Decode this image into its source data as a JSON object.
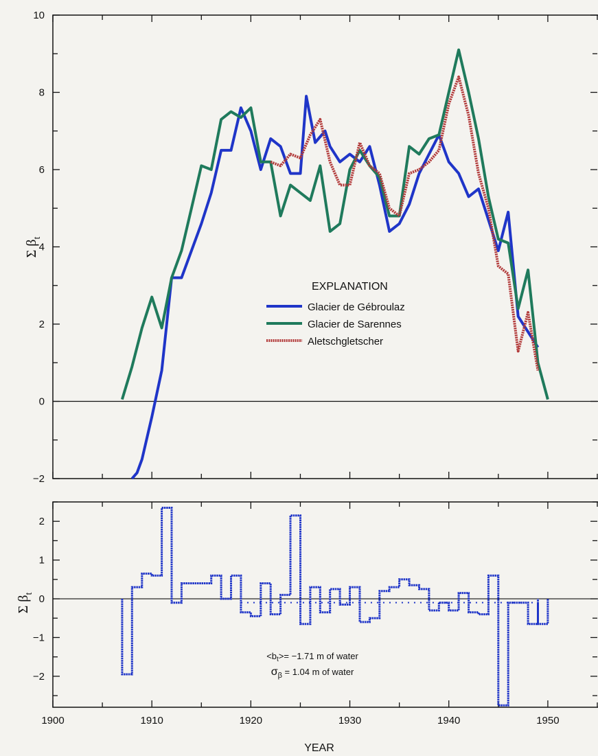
{
  "chart_data": [
    {
      "type": "line",
      "title": "",
      "xlabel": "",
      "ylabel_main": "Σ β",
      "ylabel_sub": "t",
      "xlim": [
        1900,
        1955
      ],
      "ylim": [
        -2,
        10
      ],
      "yticks": [
        "−2",
        "0",
        "2",
        "4",
        "6",
        "8",
        "10"
      ],
      "grid": false,
      "legend_title": "EXPLANATION",
      "legend_position": "center",
      "series": [
        {
          "name": "Glacier de Gébroulaz",
          "color": "#1f35c8",
          "points": [
            [
              1908.0,
              -2.0
            ],
            [
              1908.5,
              -1.85
            ],
            [
              1909,
              -1.5
            ],
            [
              1910,
              -0.4
            ],
            [
              1911,
              0.8
            ],
            [
              1912,
              3.2
            ],
            [
              1913,
              3.2
            ],
            [
              1914,
              3.9
            ],
            [
              1915,
              4.6
            ],
            [
              1916,
              5.4
            ],
            [
              1917,
              6.5
            ],
            [
              1918,
              6.5
            ],
            [
              1919,
              7.6
            ],
            [
              1920,
              7.0
            ],
            [
              1921,
              6.0
            ],
            [
              1922,
              6.8
            ],
            [
              1923,
              6.6
            ],
            [
              1924,
              5.9
            ],
            [
              1925,
              5.9
            ],
            [
              1925.6,
              7.9
            ],
            [
              1926.5,
              6.7
            ],
            [
              1927.5,
              7.0
            ],
            [
              1928,
              6.6
            ],
            [
              1929,
              6.2
            ],
            [
              1930,
              6.4
            ],
            [
              1931,
              6.2
            ],
            [
              1932,
              6.6
            ],
            [
              1933,
              5.6
            ],
            [
              1934,
              4.4
            ],
            [
              1935,
              4.6
            ],
            [
              1936,
              5.1
            ],
            [
              1937,
              5.9
            ],
            [
              1938,
              6.4
            ],
            [
              1939,
              6.9
            ],
            [
              1940,
              6.2
            ],
            [
              1941,
              5.9
            ],
            [
              1942,
              5.3
            ],
            [
              1943,
              5.5
            ],
            [
              1944,
              4.7
            ],
            [
              1945,
              3.9
            ],
            [
              1946,
              4.9
            ],
            [
              1947,
              2.2
            ],
            [
              1948,
              1.8
            ],
            [
              1949,
              1.4
            ]
          ]
        },
        {
          "name": "Glacier de Sarennes",
          "color": "#1f7a5c",
          "points": [
            [
              1907,
              0.05
            ],
            [
              1908,
              0.9
            ],
            [
              1909,
              1.9
            ],
            [
              1910,
              2.7
            ],
            [
              1911,
              1.9
            ],
            [
              1912,
              3.2
            ],
            [
              1913,
              3.9
            ],
            [
              1914,
              5.0
            ],
            [
              1915,
              6.1
            ],
            [
              1916,
              6.0
            ],
            [
              1917,
              7.3
            ],
            [
              1918,
              7.5
            ],
            [
              1919,
              7.35
            ],
            [
              1920,
              7.6
            ],
            [
              1921,
              6.2
            ],
            [
              1922,
              6.2
            ],
            [
              1923,
              4.8
            ],
            [
              1924,
              5.6
            ],
            [
              1925,
              5.4
            ],
            [
              1926,
              5.2
            ],
            [
              1927,
              6.1
            ],
            [
              1928,
              4.4
            ],
            [
              1929,
              4.6
            ],
            [
              1930,
              6.0
            ],
            [
              1931,
              6.5
            ],
            [
              1932,
              6.1
            ],
            [
              1933,
              5.8
            ],
            [
              1934,
              4.8
            ],
            [
              1935,
              4.8
            ],
            [
              1936,
              6.6
            ],
            [
              1937,
              6.4
            ],
            [
              1938,
              6.8
            ],
            [
              1939,
              6.9
            ],
            [
              1940,
              8.0
            ],
            [
              1941,
              9.1
            ],
            [
              1942,
              8.0
            ],
            [
              1943,
              6.8
            ],
            [
              1944,
              5.3
            ],
            [
              1945,
              4.2
            ],
            [
              1946,
              4.1
            ],
            [
              1947,
              2.4
            ],
            [
              1948,
              3.4
            ],
            [
              1949,
              1.0
            ],
            [
              1950,
              0.05
            ]
          ]
        },
        {
          "name": "Aletschgletscher",
          "color": "#b23a3a",
          "dashed": true,
          "points": [
            [
              1922,
              6.2
            ],
            [
              1923,
              6.1
            ],
            [
              1924,
              6.4
            ],
            [
              1925,
              6.3
            ],
            [
              1926,
              6.9
            ],
            [
              1927,
              7.3
            ],
            [
              1928,
              6.2
            ],
            [
              1929,
              5.6
            ],
            [
              1930,
              5.6
            ],
            [
              1931,
              6.7
            ],
            [
              1932,
              6.1
            ],
            [
              1933,
              5.9
            ],
            [
              1934,
              5.0
            ],
            [
              1935,
              4.8
            ],
            [
              1936,
              5.9
            ],
            [
              1937,
              6.0
            ],
            [
              1938,
              6.2
            ],
            [
              1939,
              6.5
            ],
            [
              1940,
              7.7
            ],
            [
              1941,
              8.4
            ],
            [
              1942,
              7.4
            ],
            [
              1943,
              5.9
            ],
            [
              1944,
              5.0
            ],
            [
              1945,
              3.5
            ],
            [
              1946,
              3.3
            ],
            [
              1947,
              1.3
            ],
            [
              1948,
              2.3
            ],
            [
              1949,
              0.8
            ]
          ]
        }
      ]
    },
    {
      "type": "bar",
      "title": "",
      "xlabel": "YEAR",
      "xticks": [
        "1900",
        "1910",
        "1920",
        "1930",
        "1940",
        "1950"
      ],
      "ylabel_main": "Σ β",
      "ylabel_sub": "t",
      "xlim": [
        1900,
        1955
      ],
      "ylim": [
        -2.8,
        2.5
      ],
      "yticks": [
        "−2",
        "−1",
        "0",
        "1",
        "2"
      ],
      "grid": false,
      "style": "step",
      "color": "#1f35c8",
      "years": [
        1907,
        1908,
        1909,
        1910,
        1911,
        1912,
        1913,
        1914,
        1915,
        1916,
        1917,
        1918,
        1919,
        1920,
        1921,
        1922,
        1923,
        1924,
        1925,
        1926,
        1927,
        1928,
        1929,
        1930,
        1931,
        1932,
        1933,
        1934,
        1935,
        1936,
        1937,
        1938,
        1939,
        1940,
        1941,
        1942,
        1943,
        1944,
        1945,
        1946,
        1947,
        1948
      ],
      "values": [
        -1.95,
        0.3,
        0.65,
        0.6,
        2.35,
        -0.1,
        0.4,
        0.4,
        0.4,
        0.6,
        0.0,
        0.6,
        -0.35,
        -0.45,
        0.4,
        -0.4,
        0.1,
        2.15,
        -0.65,
        0.3,
        -0.35,
        0.25,
        -0.15,
        0.3,
        -0.6,
        -0.5,
        0.2,
        0.3,
        0.5,
        0.35,
        0.25,
        -0.3,
        -0.1,
        -0.3,
        0.15,
        -0.35,
        -0.4,
        0.6,
        -2.75,
        -0.1,
        -0.1,
        -0.65
      ],
      "last_bar": [
        1949,
        1950
      ],
      "mean_line_value": -0.1,
      "annotations": {
        "mean_prefix": "<b",
        "mean_sub": "t",
        "mean_suffix": ">= −1.71 m of water",
        "sigma_prefix": "σ",
        "sigma_sub": "β",
        "sigma_suffix": " = 1.04 m of water"
      }
    }
  ]
}
